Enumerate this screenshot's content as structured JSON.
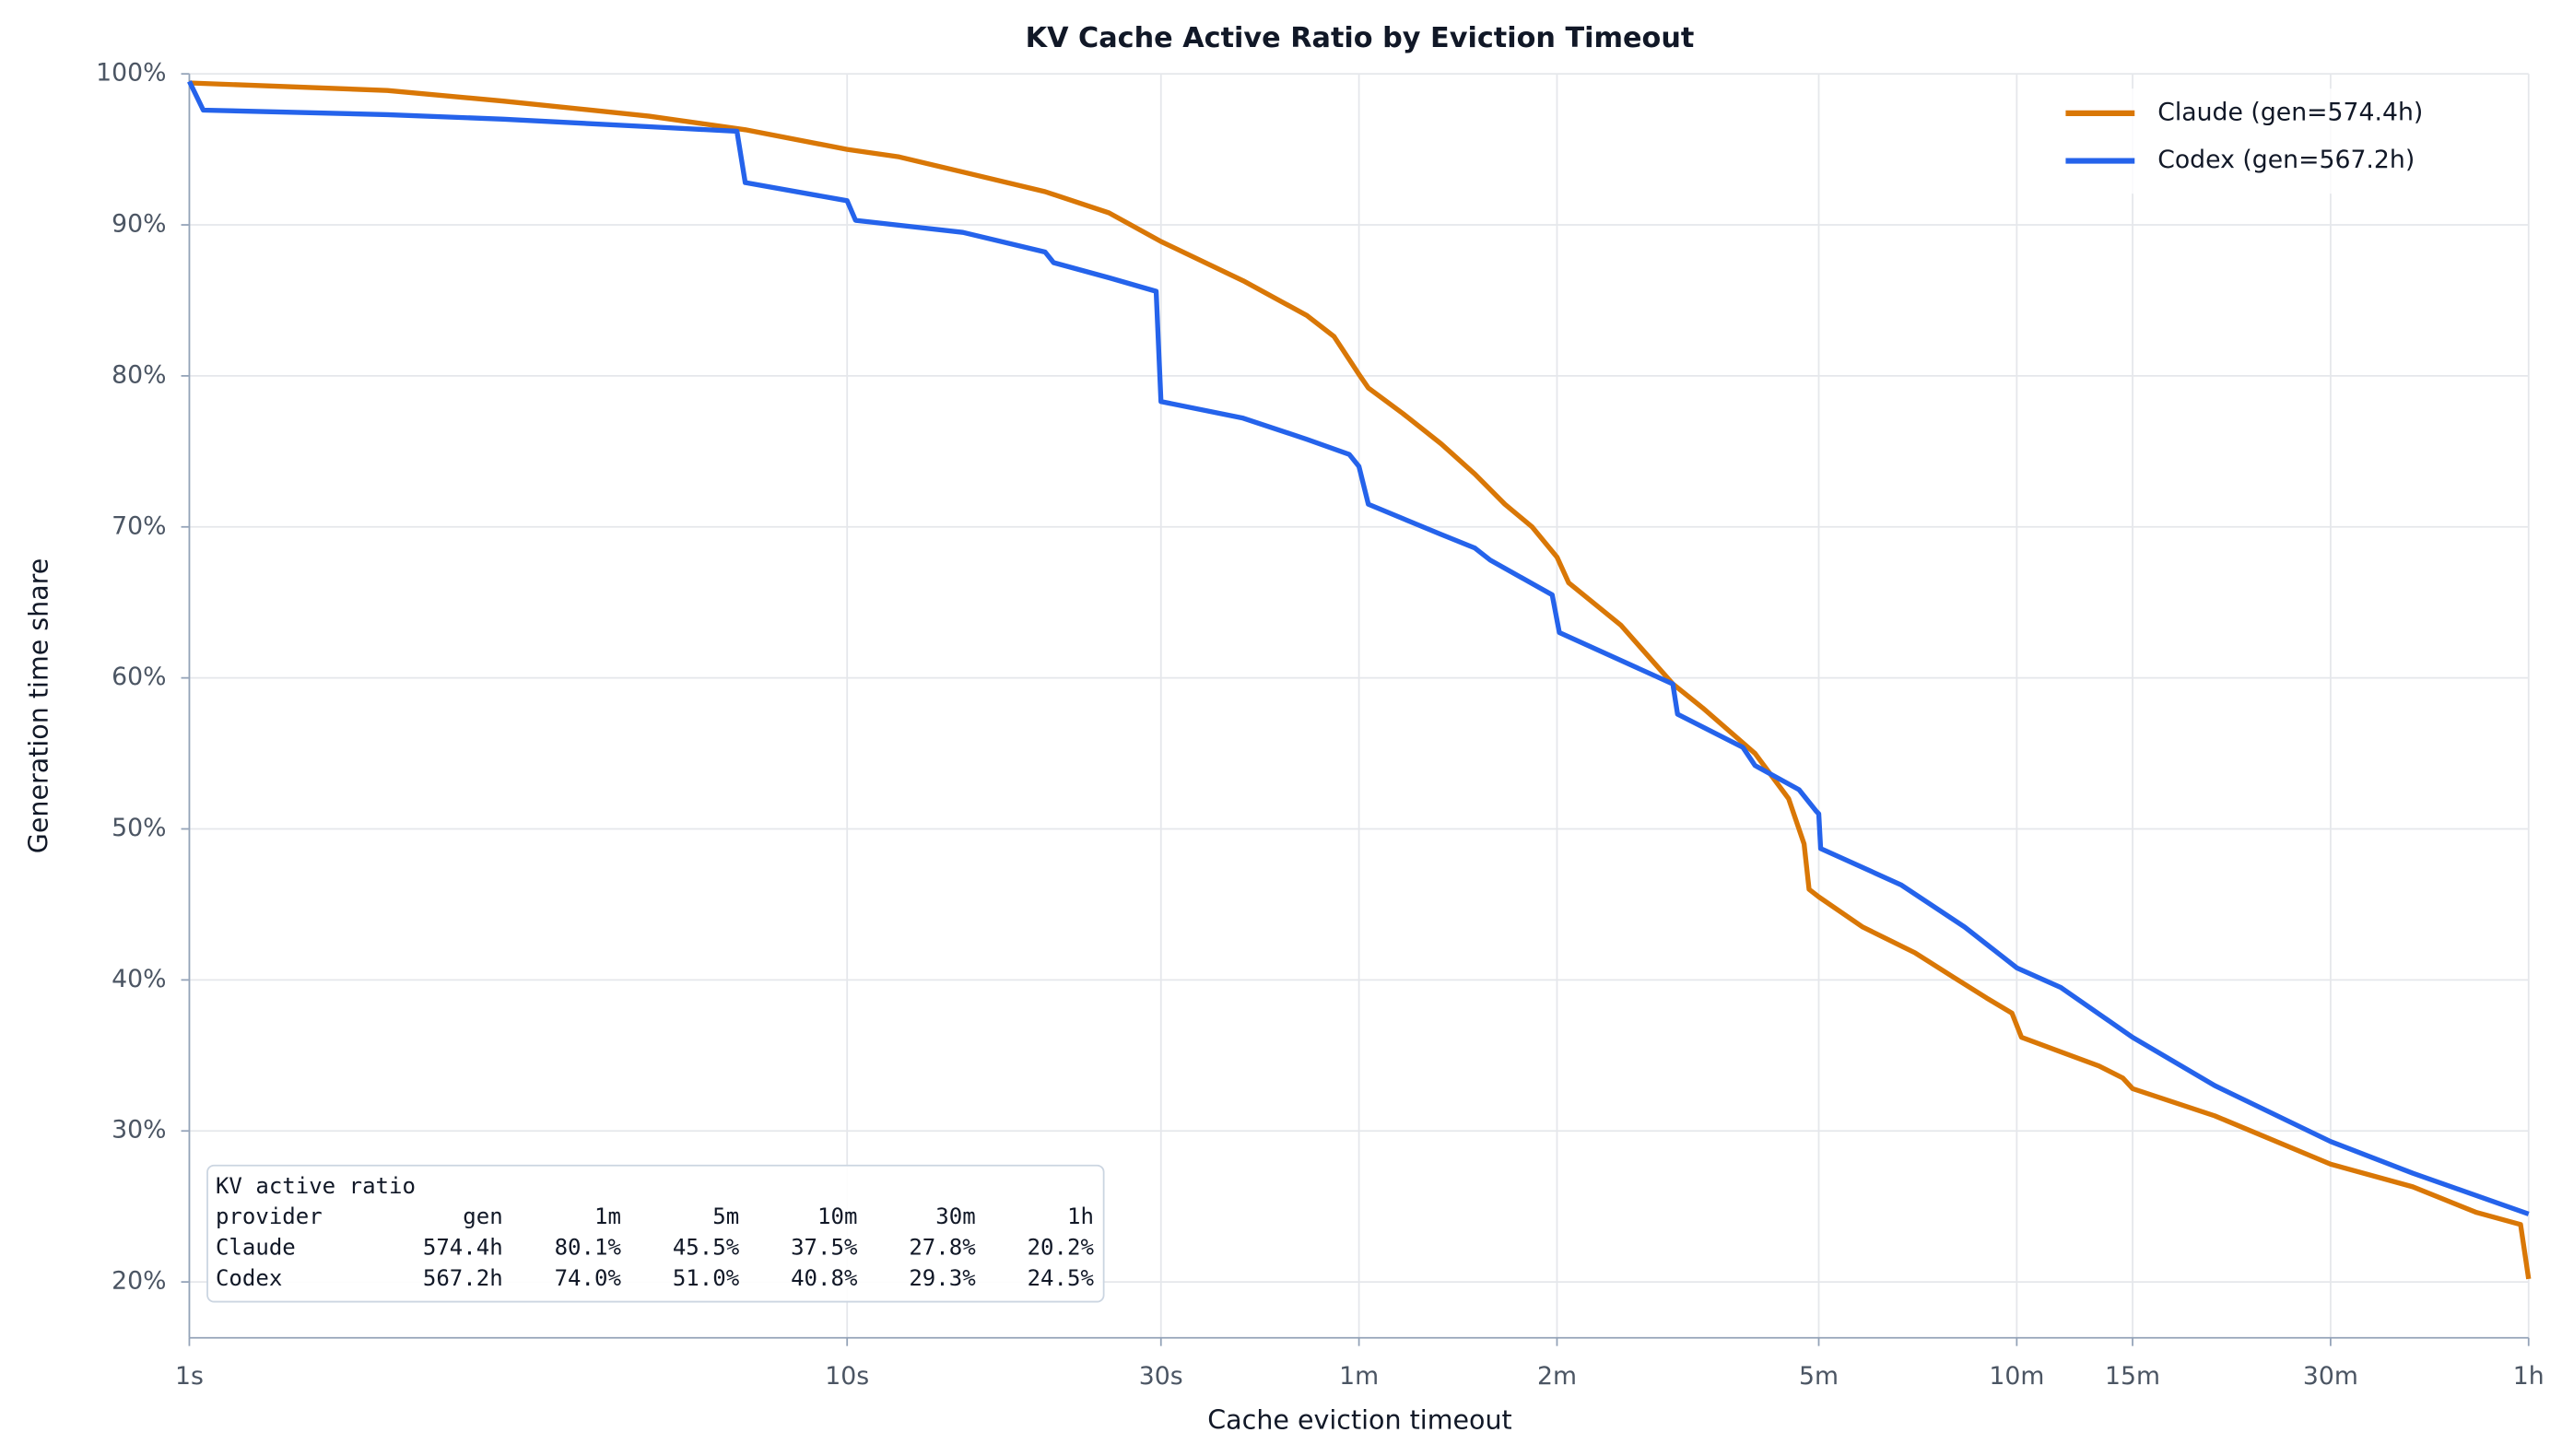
{
  "chart_data": {
    "type": "line",
    "title": "KV Cache Active Ratio by Eviction Timeout",
    "xlabel": "Cache eviction timeout",
    "ylabel": "Generation time share",
    "xscale": "log",
    "grid": true,
    "legend": "upper right",
    "xlim": [
      1,
      3600
    ],
    "ylim": [
      16.3,
      100
    ],
    "xticks": [
      {
        "value": 1,
        "label": "1s"
      },
      {
        "value": 10,
        "label": "10s"
      },
      {
        "value": 30,
        "label": "30s"
      },
      {
        "value": 60,
        "label": "1m"
      },
      {
        "value": 120,
        "label": "2m"
      },
      {
        "value": 300,
        "label": "5m"
      },
      {
        "value": 600,
        "label": "10m"
      },
      {
        "value": 900,
        "label": "15m"
      },
      {
        "value": 1800,
        "label": "30m"
      },
      {
        "value": 3600,
        "label": "1h"
      }
    ],
    "yticks": [
      {
        "value": 20,
        "label": "20%"
      },
      {
        "value": 30,
        "label": "30%"
      },
      {
        "value": 40,
        "label": "40%"
      },
      {
        "value": 50,
        "label": "50%"
      },
      {
        "value": 60,
        "label": "60%"
      },
      {
        "value": 70,
        "label": "70%"
      },
      {
        "value": 80,
        "label": "80%"
      },
      {
        "value": 90,
        "label": "90%"
      },
      {
        "value": 100,
        "label": "100%"
      }
    ],
    "series": [
      {
        "name": "Claude (gen=574.4h)",
        "color": "#d97706",
        "x": [
          1,
          2,
          3,
          5,
          7,
          10,
          12,
          15,
          20,
          25,
          30,
          40,
          50,
          55,
          60,
          62,
          70,
          80,
          90,
          100,
          110,
          120,
          125,
          150,
          180,
          200,
          240,
          270,
          285,
          290,
          300,
          350,
          420,
          480,
          540,
          590,
          610,
          800,
          870,
          900,
          1200,
          1800,
          2400,
          3000,
          3500,
          3600
        ],
        "values": [
          99.4,
          98.9,
          98.2,
          97.2,
          96.3,
          95.0,
          94.5,
          93.5,
          92.2,
          90.8,
          88.9,
          86.3,
          84.0,
          82.6,
          80.1,
          79.2,
          77.5,
          75.5,
          73.5,
          71.5,
          70.0,
          68.0,
          66.3,
          63.5,
          59.6,
          58.0,
          55.0,
          52.0,
          49.0,
          46.0,
          45.5,
          43.5,
          41.8,
          40.2,
          38.8,
          37.8,
          36.2,
          34.3,
          33.5,
          32.8,
          31.0,
          27.8,
          26.3,
          24.6,
          23.8,
          20.2
        ]
      },
      {
        "name": "Codex (gen=567.2h)",
        "color": "#2563eb",
        "x": [
          1,
          1.05,
          2,
          3,
          5,
          6.8,
          7,
          10,
          10.3,
          15,
          20,
          20.6,
          25,
          29.5,
          30,
          40,
          50,
          58,
          60,
          62,
          80,
          90,
          95,
          118,
          121,
          180,
          183,
          230,
          240,
          280,
          297,
          300,
          302,
          400,
          500,
          600,
          700,
          900,
          1200,
          1800,
          2400,
          3600
        ],
        "values": [
          99.5,
          97.6,
          97.3,
          97.0,
          96.5,
          96.2,
          92.8,
          91.6,
          90.3,
          89.5,
          88.2,
          87.5,
          86.5,
          85.6,
          78.3,
          77.2,
          75.8,
          74.8,
          74.0,
          71.5,
          69.5,
          68.6,
          67.8,
          65.5,
          63.0,
          59.6,
          57.6,
          55.4,
          54.2,
          52.6,
          51.2,
          51.0,
          48.7,
          46.3,
          43.5,
          40.8,
          39.5,
          36.2,
          33.0,
          29.3,
          27.2,
          24.5
        ]
      }
    ],
    "table": {
      "title": "KV active ratio",
      "columns": [
        "provider",
        "gen",
        "1m",
        "5m",
        "10m",
        "30m",
        "1h"
      ],
      "rows": [
        [
          "Claude",
          "574.4h",
          "80.1%",
          "45.5%",
          "37.5%",
          "27.8%",
          "20.2%"
        ],
        [
          "Codex",
          "567.2h",
          "74.0%",
          "51.0%",
          "40.8%",
          "29.3%",
          "24.5%"
        ]
      ]
    }
  }
}
